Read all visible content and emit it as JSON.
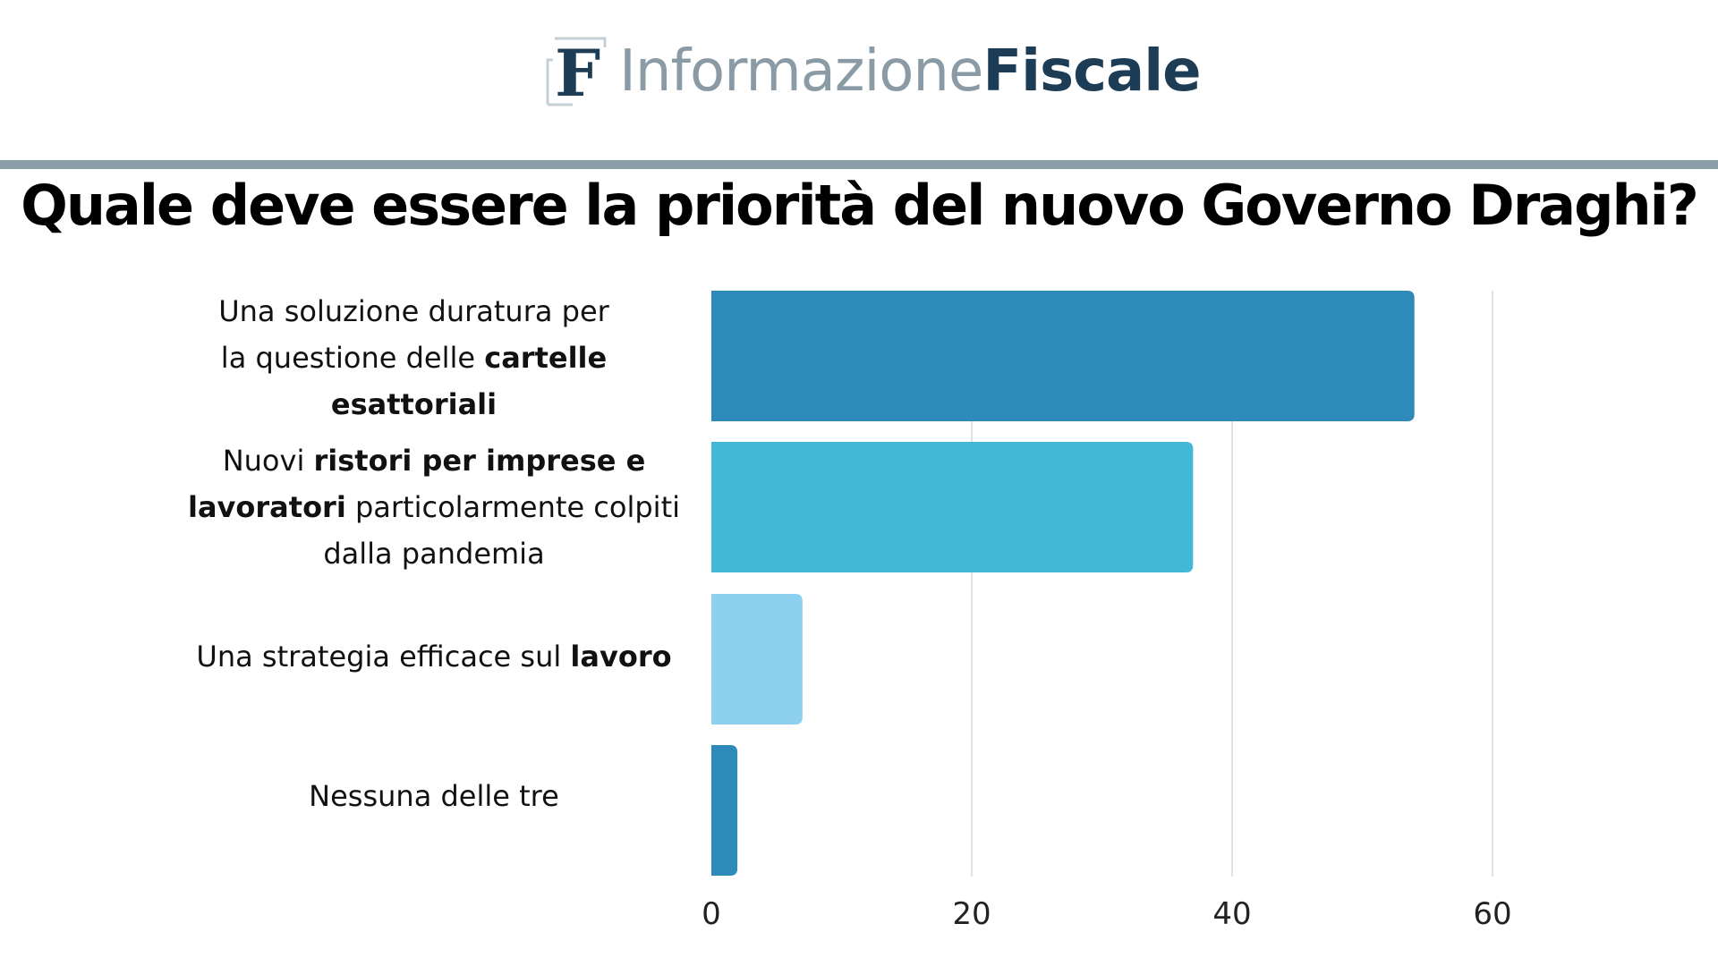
{
  "brand": {
    "mark_letter": "F",
    "name_light": "Informazione",
    "name_bold": "Fiscale",
    "light_color": "#8a9ba6",
    "bold_color": "#1d3c55"
  },
  "chart_data": {
    "type": "bar",
    "orientation": "horizontal",
    "title": "Quale deve essere la priorità del nuovo Governo Draghi?",
    "categories": [
      "Una soluzione duratura per la questione delle cartelle esattoriali",
      "Nuovi ristori per imprese e lavoratori particolarmente colpiti dalla pandemia",
      "Una strategia efficace sul lavoro",
      "Nessuna delle tre"
    ],
    "category_label_parts": [
      [
        [
          {
            "t": "Una soluzione duratura per",
            "b": false
          }
        ],
        [
          {
            "t": "la questione delle ",
            "b": false
          },
          {
            "t": "cartelle",
            "b": true
          }
        ],
        [
          {
            "t": "esattoriali",
            "b": true
          }
        ]
      ],
      [
        [
          {
            "t": "Nuovi ",
            "b": false
          },
          {
            "t": "ristori per imprese e",
            "b": true
          }
        ],
        [
          {
            "t": "lavoratori",
            "b": true
          },
          {
            "t": " particolarmente colpiti",
            "b": false
          }
        ],
        [
          {
            "t": "dalla pandemia",
            "b": false
          }
        ]
      ],
      [
        [
          {
            "t": "Una strategia efficace sul ",
            "b": false
          },
          {
            "t": "lavoro",
            "b": true
          }
        ]
      ],
      [
        [
          {
            "t": "Nessuna delle tre",
            "b": false
          }
        ]
      ]
    ],
    "values": [
      54,
      37,
      7,
      2
    ],
    "bar_colors": [
      "#2e8ab8",
      "#42b7d6",
      "#8ed0f0",
      "#2e8ab8"
    ],
    "xlim": [
      0,
      60
    ],
    "xticks": [
      "0",
      "20",
      "40",
      "60"
    ],
    "grid": true,
    "xlabel": "",
    "ylabel": ""
  }
}
